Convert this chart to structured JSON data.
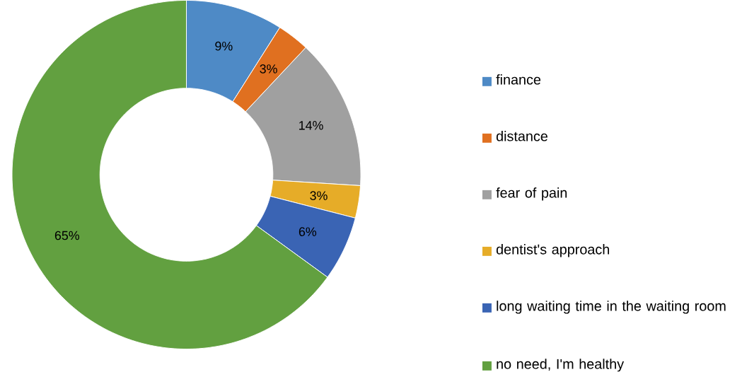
{
  "chart_data": {
    "type": "donut",
    "categories": [
      "finance",
      "distance",
      "fear of pain",
      "dentist's approach",
      "long waiting time in the waiting room",
      "no need, I'm healthy"
    ],
    "values": [
      9,
      3,
      14,
      3,
      6,
      65
    ],
    "colors": [
      "#4e8ac6",
      "#e07020",
      "#a0a0a0",
      "#e6ac28",
      "#3a64b4",
      "#62a040"
    ],
    "value_labels": [
      "9%",
      "3%",
      "14%",
      "3%",
      "6%",
      "65%"
    ],
    "legend": "right"
  }
}
